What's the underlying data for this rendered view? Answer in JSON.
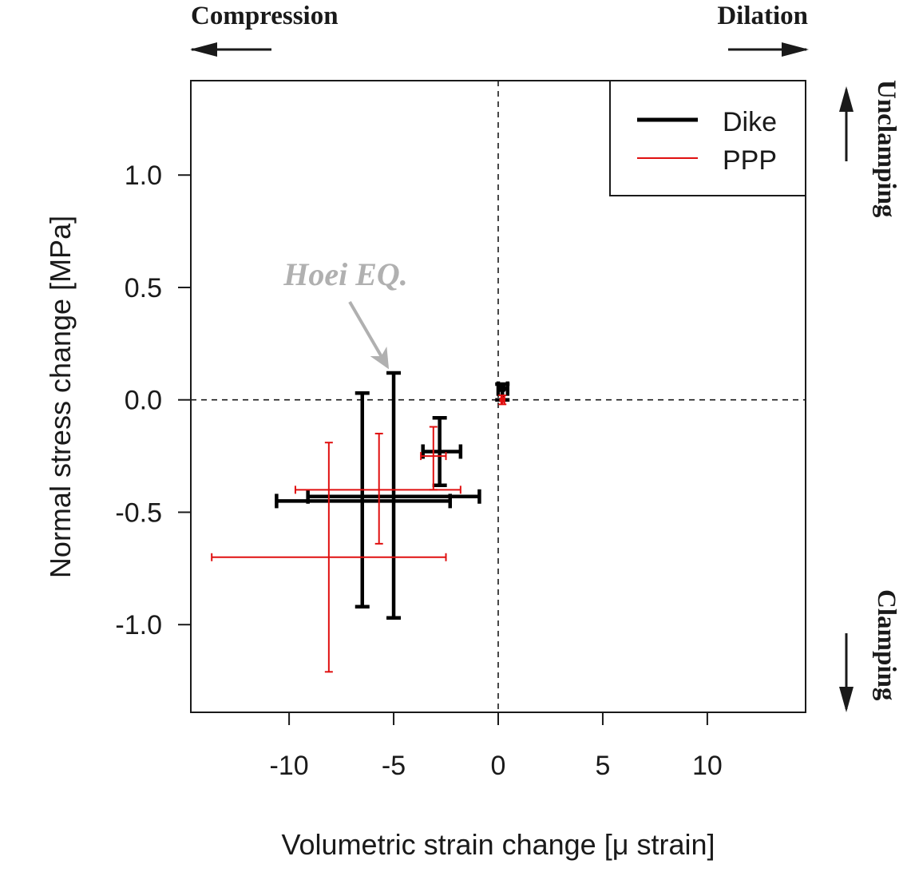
{
  "chart_data": {
    "type": "scatter",
    "xlabel": "Volumetric strain change [μ strain]",
    "ylabel": "Normal stress change [MPa]",
    "xlim": [
      -14.7,
      14.7
    ],
    "ylim": [
      -1.39,
      1.42
    ],
    "x_ticks": [
      -10,
      -5,
      0,
      5,
      10
    ],
    "x_tick_labels": [
      "-10",
      "-5",
      "0",
      "5",
      "10"
    ],
    "y_ticks": [
      -1.0,
      -0.5,
      0.0,
      0.5,
      1.0
    ],
    "y_tick_labels": [
      "-1.0",
      "-0.5",
      "0.0",
      "0.5",
      "1.0"
    ],
    "reference_lines": {
      "x": 0,
      "y": 0,
      "style": "dashed"
    },
    "legend": {
      "position": "top-right",
      "entries": [
        {
          "label": "Dike",
          "color": "#000000"
        },
        {
          "label": "PPP",
          "color": "#e01010"
        }
      ]
    },
    "series": [
      {
        "name": "Dike",
        "color": "#000000",
        "points": [
          {
            "x": -6.5,
            "y": -0.45,
            "x_low": -10.6,
            "x_high": -2.3,
            "y_low": -0.92,
            "y_high": 0.03
          },
          {
            "x": -5.0,
            "y": -0.43,
            "x_low": -9.1,
            "x_high": -0.9,
            "y_low": -0.97,
            "y_high": 0.12
          },
          {
            "x": -2.8,
            "y": -0.23,
            "x_low": -3.6,
            "x_high": -1.8,
            "y_low": -0.38,
            "y_high": -0.08
          },
          {
            "x": 0.2,
            "y": 0.05,
            "x_low": 0.0,
            "x_high": 0.45,
            "y_low": 0.0,
            "y_high": 0.07
          }
        ]
      },
      {
        "name": "PPP",
        "color": "#e01010",
        "points": [
          {
            "x": -8.1,
            "y": -0.7,
            "x_low": -13.7,
            "x_high": -2.5,
            "y_low": -1.21,
            "y_high": -0.19
          },
          {
            "x": -5.7,
            "y": -0.4,
            "x_low": -9.7,
            "x_high": -1.8,
            "y_low": -0.64,
            "y_high": -0.15
          },
          {
            "x": -3.1,
            "y": -0.25,
            "x_low": -3.7,
            "x_high": -2.5,
            "y_low": -0.4,
            "y_high": -0.12
          },
          {
            "x": 0.2,
            "y": 0.0,
            "x_low": 0.15,
            "x_high": 0.3,
            "y_low": -0.02,
            "y_high": 0.02
          }
        ]
      }
    ],
    "annotation": {
      "text": "Hoei EQ.",
      "color": "#b0b0b0",
      "target_x": -5.0,
      "target_y": 0.12
    },
    "direction_labels": {
      "left": "Compression",
      "right": "Dilation",
      "top": "Unclamping",
      "bottom": "Clamping"
    }
  }
}
